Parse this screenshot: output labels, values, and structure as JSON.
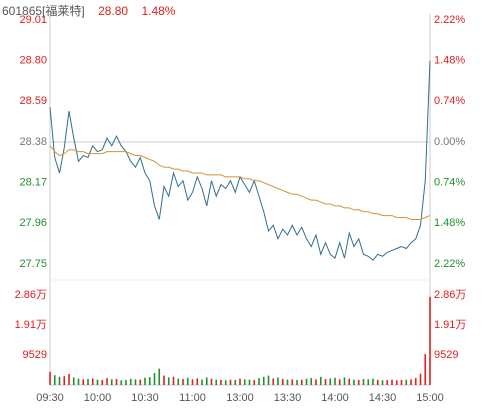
{
  "chart_data": {
    "type": "line",
    "title": "601865[福莱特]",
    "price_label": "28.80",
    "change_label": "1.48%",
    "prev_close": 28.38,
    "categories": [
      "09:30",
      null,
      null,
      null,
      null,
      null,
      null,
      null,
      null,
      null,
      "10:00",
      null,
      null,
      null,
      null,
      null,
      null,
      null,
      null,
      null,
      "10:30",
      null,
      null,
      null,
      null,
      null,
      null,
      null,
      null,
      null,
      "11:00",
      null,
      null,
      null,
      null,
      null,
      null,
      null,
      null,
      null,
      "13:00",
      null,
      null,
      null,
      null,
      null,
      null,
      null,
      null,
      null,
      "13:30",
      null,
      null,
      null,
      null,
      null,
      null,
      null,
      null,
      null,
      "14:00",
      null,
      null,
      null,
      null,
      null,
      null,
      null,
      null,
      null,
      "14:30",
      null,
      null,
      null,
      null,
      null,
      null,
      null,
      null,
      null,
      "15:00"
    ],
    "series": [
      {
        "name": "price",
        "color": "#2f6f8c",
        "values": [
          28.56,
          28.3,
          28.22,
          28.35,
          28.54,
          28.4,
          28.28,
          28.31,
          28.3,
          28.36,
          28.33,
          28.34,
          28.4,
          28.36,
          28.41,
          28.36,
          28.33,
          28.28,
          28.25,
          28.3,
          28.22,
          28.18,
          28.05,
          27.98,
          28.15,
          28.1,
          28.22,
          28.15,
          28.18,
          28.08,
          28.12,
          28.2,
          28.14,
          28.05,
          28.18,
          28.1,
          28.16,
          28.14,
          28.18,
          28.12,
          28.2,
          28.16,
          28.12,
          28.18,
          28.1,
          28.02,
          27.92,
          27.95,
          27.88,
          27.93,
          27.9,
          27.95,
          27.9,
          27.94,
          27.88,
          27.84,
          27.9,
          27.8,
          27.86,
          27.8,
          27.78,
          27.86,
          27.78,
          27.91,
          27.84,
          27.88,
          27.8,
          27.79,
          27.77,
          27.8,
          27.79,
          27.81,
          27.82,
          27.83,
          27.84,
          27.83,
          27.86,
          27.88,
          27.95,
          28.18,
          28.8
        ]
      },
      {
        "name": "average",
        "color": "#d4913a",
        "values": [
          28.36,
          28.33,
          28.31,
          28.32,
          28.34,
          28.34,
          28.33,
          28.33,
          28.32,
          28.32,
          28.32,
          28.32,
          28.33,
          28.33,
          28.33,
          28.33,
          28.33,
          28.32,
          28.31,
          28.31,
          28.3,
          28.29,
          28.28,
          28.26,
          28.25,
          28.25,
          28.24,
          28.24,
          28.23,
          28.23,
          28.22,
          28.22,
          28.22,
          28.21,
          28.21,
          28.21,
          28.21,
          28.2,
          28.2,
          28.2,
          28.2,
          28.19,
          28.19,
          28.18,
          28.18,
          28.17,
          28.16,
          28.15,
          28.14,
          28.13,
          28.12,
          28.11,
          28.11,
          28.1,
          28.09,
          28.08,
          28.08,
          28.07,
          28.06,
          28.06,
          28.05,
          28.05,
          28.04,
          28.04,
          28.03,
          28.03,
          28.02,
          28.02,
          28.01,
          28.01,
          28.0,
          28.0,
          28.0,
          27.99,
          27.99,
          27.99,
          27.98,
          27.98,
          27.98,
          27.99,
          28.0
        ]
      },
      {
        "name": "volume",
        "axis": "vol",
        "values": [
          4200,
          3100,
          2600,
          2800,
          3500,
          2400,
          2000,
          1800,
          1900,
          2100,
          1700,
          1600,
          2200,
          1800,
          1900,
          1500,
          1600,
          2000,
          1800,
          1700,
          2300,
          2500,
          3800,
          5200,
          3000,
          2400,
          2600,
          2000,
          1900,
          2300,
          1800,
          2100,
          1700,
          2400,
          2000,
          1700,
          1600,
          1500,
          1700,
          1600,
          2000,
          1800,
          1700,
          1600,
          2200,
          2600,
          3000,
          2100,
          2400,
          1900,
          1700,
          1800,
          1600,
          1700,
          2000,
          2200,
          1800,
          2600,
          1900,
          2100,
          2300,
          1800,
          2400,
          2000,
          1700,
          1600,
          1900,
          1800,
          2000,
          1600,
          1500,
          1600,
          1700,
          1500,
          1600,
          1700,
          1800,
          2200,
          3600,
          9800,
          28000
        ]
      }
    ],
    "ylim": [
      27.75,
      29.01
    ],
    "yticks": [
      {
        "value": 29.01,
        "label": "29.01"
      },
      {
        "value": 28.8,
        "label": "28.80"
      },
      28.59,
      28.38,
      28.17,
      27.96,
      27.75
    ],
    "y2lim": [
      -2.22,
      2.22
    ],
    "y2ticks": [
      {
        "value": 2.22,
        "label": "2.22%"
      },
      {
        "value": 1.48,
        "label": "1.48%"
      },
      {
        "value": 0.74,
        "label": "0.74%"
      },
      {
        "value": 0,
        "label": "0.00%"
      },
      {
        "value": -0.74,
        "label": "0.74%"
      },
      {
        "value": -1.48,
        "label": "1.48%"
      },
      {
        "value": -2.22,
        "label": "2.22%"
      }
    ],
    "vol_ylim": [
      0,
      28600
    ],
    "vol_ticks": [
      {
        "value": 28600,
        "label": "2.86万"
      },
      {
        "value": 19100,
        "label": "1.91万"
      },
      9529
    ],
    "up_color": "#e02020",
    "down_color": "#1f8f2f",
    "flat_color": "#777777"
  }
}
